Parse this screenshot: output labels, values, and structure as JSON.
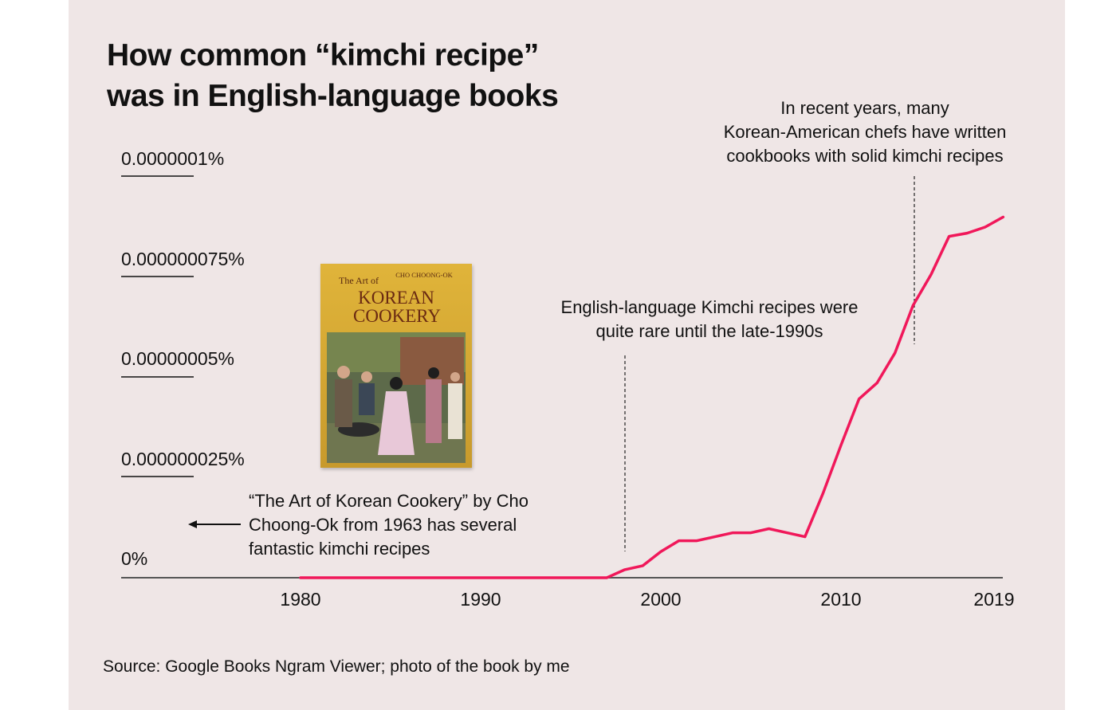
{
  "title_lines": [
    "How common “kimchi recipe”",
    "was in English-language books"
  ],
  "annotations": {
    "recent": [
      "In recent years, many",
      "Korean-American chefs have written",
      "cookbooks with solid kimchi recipes"
    ],
    "rare": [
      "English-language Kimchi recipes were",
      "quite rare until the late-1990s"
    ],
    "book": [
      "“The Art of Korean Cookery” by Cho",
      "Choong-Ok from 1963 has several",
      "fantastic kimchi recipes"
    ]
  },
  "book_cover": {
    "author": "CHO CHOONG-OK",
    "prefix": "The Art of",
    "title_line1": "KOREAN",
    "title_line2": "COOKERY"
  },
  "source": "Source: Google Books Ngram Viewer; photo of the book by me",
  "colors": {
    "line": "#f0185a",
    "background": "#efe6e6",
    "text": "#111111"
  },
  "chart_data": {
    "type": "line",
    "title": "How common “kimchi recipe” was in English-language books",
    "y_ticks": [
      "0%",
      "0.000000025%",
      "0.00000005%",
      "0.000000075%",
      "0.0000001%"
    ],
    "y_tick_values": [
      0,
      2.5e-08,
      5e-08,
      7.5e-08,
      1e-07
    ],
    "x_ticks": [
      "1980",
      "1990",
      "2000",
      "2010",
      "2019"
    ],
    "x_tick_values": [
      1980,
      1990,
      2000,
      2010,
      2019
    ],
    "xlim": [
      1970,
      2019
    ],
    "ylim": [
      0,
      1e-07
    ],
    "grid": false,
    "series": [
      {
        "x": [
          1980,
          1981,
          1982,
          1983,
          1984,
          1985,
          1986,
          1987,
          1988,
          1989,
          1990,
          1991,
          1992,
          1993,
          1994,
          1995,
          1996,
          1997,
          1998,
          1999,
          2000,
          2001,
          2002,
          2003,
          2004,
          2005,
          2006,
          2007,
          2008,
          2009,
          2010,
          2011,
          2012,
          2013,
          2014,
          2015,
          2016,
          2017,
          2018,
          2019
        ],
        "values": [
          0,
          0,
          0,
          0,
          0,
          0,
          0,
          0,
          0,
          0,
          0,
          0,
          0,
          0,
          0,
          0,
          0,
          0,
          2e-09,
          3e-09,
          6.5e-09,
          9.2e-09,
          9.2e-09,
          1.02e-08,
          1.12e-08,
          1.12e-08,
          1.22e-08,
          1.12e-08,
          1.02e-08,
          2.1e-08,
          3.3e-08,
          4.45e-08,
          4.85e-08,
          5.6e-08,
          6.78e-08,
          7.55e-08,
          8.5e-08,
          8.58e-08,
          8.73e-08,
          8.98e-08
        ]
      }
    ]
  }
}
